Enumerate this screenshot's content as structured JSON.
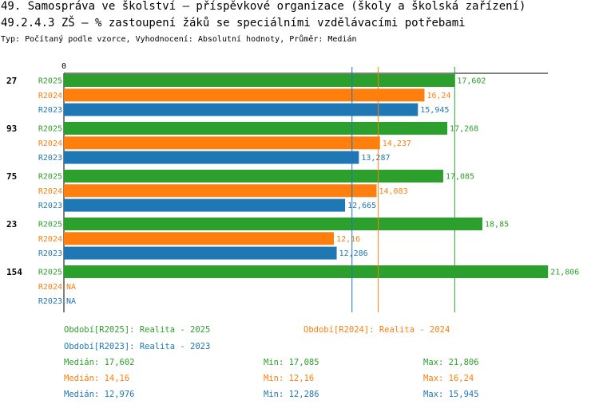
{
  "header": {
    "title": "49. Samospráva ve školství – příspěvkové organizace (školy a školská zařízení)",
    "subtitle": "49.2.4.3 ZŠ – % zastoupení žáků se speciálními vzdělávacími potřebami",
    "info": "Typ: Počítaný podle vzorce, Vyhodnocení: Absolutní hodnoty, Průměr: Medián"
  },
  "colors": {
    "R2025": "#2ca02c",
    "R2024": "#ff7f0e",
    "R2023": "#1f77b4"
  },
  "chart_data": {
    "type": "bar",
    "orientation": "horizontal",
    "x_origin_label": "0",
    "xlim": [
      0,
      22.5
    ],
    "categories": [
      "27",
      "93",
      "75",
      "23",
      "154"
    ],
    "series": [
      {
        "name": "R2025",
        "values": [
          17.602,
          17.268,
          17.085,
          18.85,
          21.806
        ],
        "labels": [
          "17,602",
          "17,268",
          "17,085",
          "18,85",
          "21,806"
        ]
      },
      {
        "name": "R2024",
        "values": [
          16.24,
          14.237,
          14.083,
          12.16,
          null
        ],
        "labels": [
          "16,24",
          "14,237",
          "14,083",
          "12,16",
          "NA"
        ]
      },
      {
        "name": "R2023",
        "values": [
          15.945,
          13.287,
          12.665,
          12.286,
          null
        ],
        "labels": [
          "15,945",
          "13,287",
          "12,665",
          "12,286",
          "NA"
        ]
      }
    ],
    "median_lines": {
      "R2025": 17.602,
      "R2024": 14.16,
      "R2023": 12.976
    }
  },
  "legend": {
    "periods": [
      {
        "series": "R2025",
        "text": "Období[R2025]: Realita - 2025"
      },
      {
        "series": "R2024",
        "text": "Období[R2024]: Realita - 2024"
      },
      {
        "series": "R2023",
        "text": "Období[R2023]: Realita - 2023"
      }
    ],
    "stats": [
      {
        "series": "R2025",
        "median": "Medián: 17,602",
        "min": "Min: 17,085",
        "max": "Max: 21,806"
      },
      {
        "series": "R2024",
        "median": "Medián: 14,16",
        "min": "Min: 12,16",
        "max": "Max: 16,24"
      },
      {
        "series": "R2023",
        "median": "Medián: 12,976",
        "min": "Min: 12,286",
        "max": "Max: 15,945"
      }
    ]
  }
}
